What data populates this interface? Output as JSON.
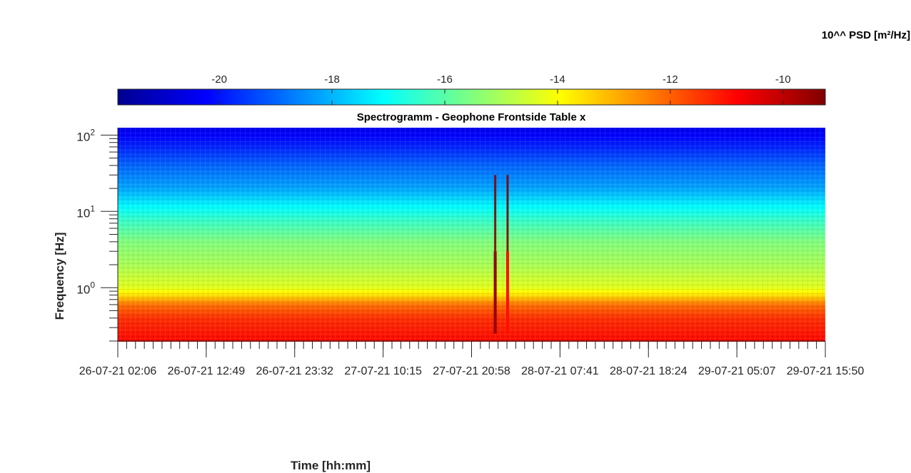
{
  "chart_data": {
    "type": "heatmap",
    "title": "Spectrogramm - Geophone Frontside Table x",
    "xlabel": "Time [hh:mm]",
    "ylabel": "Frequency [Hz]",
    "colorbar": {
      "label": "10^^ PSD [m²/Hz]",
      "ticks": [
        -20,
        -18,
        -16,
        -14,
        -12,
        -10
      ],
      "tick_labels": [
        "-20",
        "-18",
        "-16",
        "-14",
        "-12",
        "-10"
      ],
      "range": [
        -21.8,
        -9.25
      ],
      "colormap": "jet",
      "placement": "top"
    },
    "x_ticks": [
      "26-07-21  02:06",
      "26-07-21  12:49",
      "26-07-21  23:32",
      "27-07-21  10:15",
      "27-07-21  20:58",
      "28-07-21  07:41",
      "28-07-21  18:24",
      "29-07-21  05:07",
      "29-07-21  15:50"
    ],
    "y_ticks": [
      {
        "base": "10",
        "exp": "0",
        "value": 1
      },
      {
        "base": "10",
        "exp": "1",
        "value": 10
      },
      {
        "base": "10",
        "exp": "2",
        "value": 100
      }
    ],
    "y_scale": "log",
    "ylim": [
      0.2,
      125
    ],
    "grid": false,
    "psd_profile_by_frequency": [
      {
        "freq_hz": 0.2,
        "log10_psd": -10.9
      },
      {
        "freq_hz": 0.4,
        "log10_psd": -11.4
      },
      {
        "freq_hz": 0.6,
        "log10_psd": -12.2
      },
      {
        "freq_hz": 0.8,
        "log10_psd": -13.6
      },
      {
        "freq_hz": 1.0,
        "log10_psd": -14.3
      },
      {
        "freq_hz": 2.0,
        "log10_psd": -15.0
      },
      {
        "freq_hz": 4.0,
        "log10_psd": -15.5
      },
      {
        "freq_hz": 8.0,
        "log10_psd": -16.5
      },
      {
        "freq_hz": 12.0,
        "log10_psd": -17.2
      },
      {
        "freq_hz": 20.0,
        "log10_psd": -18.2
      },
      {
        "freq_hz": 40.0,
        "log10_psd": -19.0
      },
      {
        "freq_hz": 70.0,
        "log10_psd": -19.8
      },
      {
        "freq_hz": 125.0,
        "log10_psd": -20.5
      }
    ],
    "events": [
      {
        "time": "27-07-21 23:50",
        "log10_psd_peak": -9.5
      },
      {
        "time": "28-07-21 01:20",
        "log10_psd_peak": -11.0
      }
    ]
  }
}
